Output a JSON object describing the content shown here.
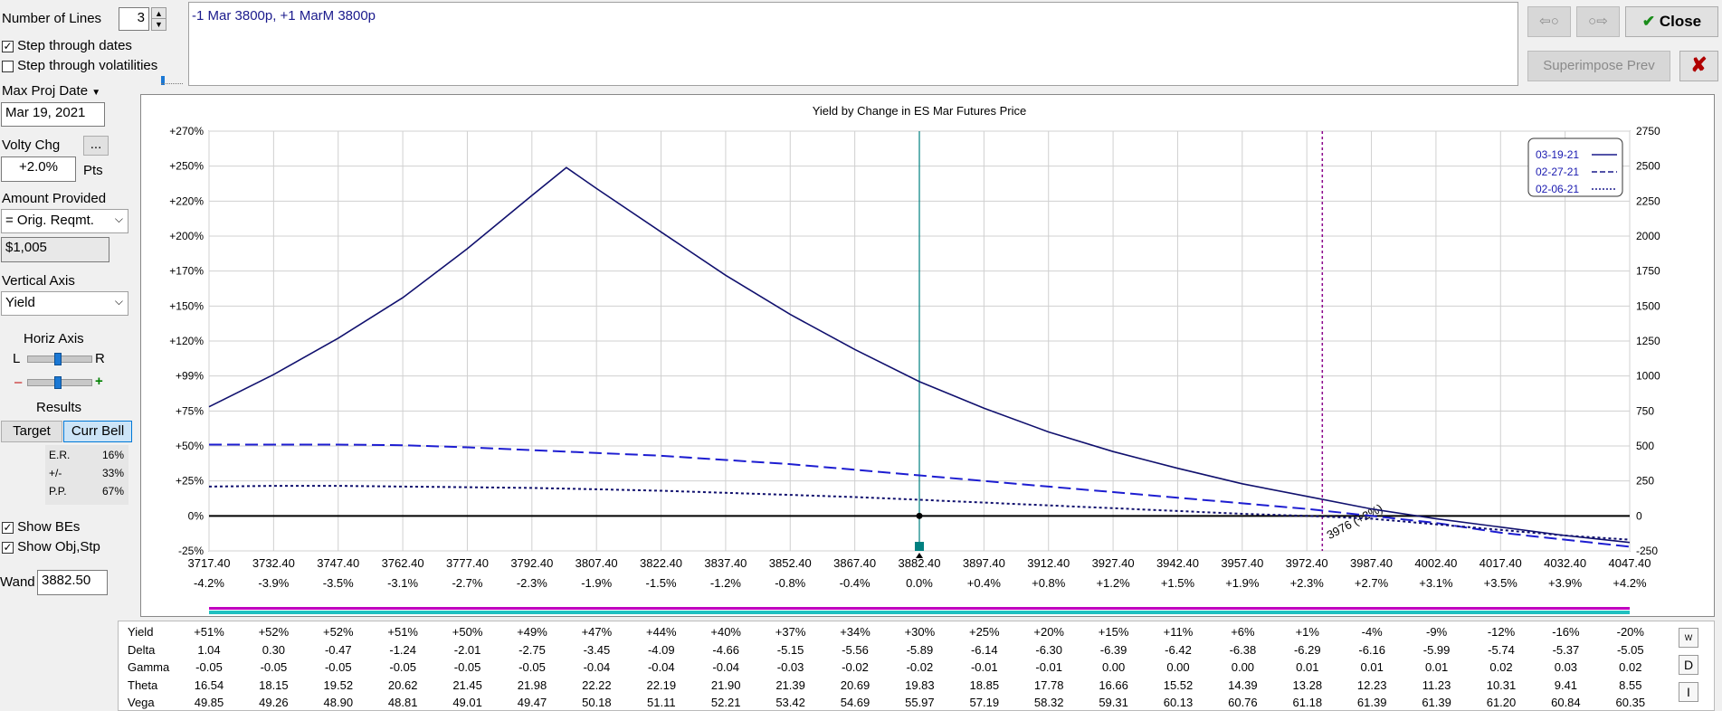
{
  "left_panel": {
    "number_of_lines_label": "Number of Lines",
    "number_of_lines_value": "3",
    "step_dates_label": "Step through dates",
    "step_dates_checked": true,
    "step_vol_label": "Step through volatilities",
    "step_vol_checked": false,
    "max_proj_date_label": "Max Proj Date",
    "max_proj_date_value": "Mar 19, 2021",
    "volty_chg_label": "Volty Chg",
    "volty_chg_button": "...",
    "volty_chg_value": "+2.0%",
    "volty_chg_unit": "Pts",
    "amount_provided_label": "Amount Provided",
    "amount_provided_select": "= Orig. Reqmt.",
    "amount_value": "$1,005",
    "vertical_axis_label": "Vertical Axis",
    "vertical_axis_select": "Yield",
    "horiz_axis_label": "Horiz Axis",
    "horiz_l": "L",
    "horiz_r": "R",
    "horiz_minus": "–",
    "horiz_plus": "+",
    "results_label": "Results",
    "tab_target": "Target",
    "tab_curr_bell": "Curr Bell",
    "er_label": "E.R.",
    "er_value": "16%",
    "pm_label": "+/-",
    "pm_value": "33%",
    "pp_label": "P.P.",
    "pp_value": "67%",
    "show_bes_label": "Show BEs",
    "show_bes_checked": true,
    "show_objstp_label": "Show Obj,Stp",
    "show_objstp_checked": true,
    "wand_label": "Wand",
    "wand_value": "3882.50"
  },
  "top": {
    "position_text": "-1 Mar 3800p, +1 MarM 3800p",
    "close_label": "Close",
    "superimpose_label": "Superimpose Prev"
  },
  "chart_data": {
    "type": "line",
    "title": "Yield by Change in ES Mar Futures Price",
    "x_ticks": [
      "3717.40",
      "3732.40",
      "3747.40",
      "3762.40",
      "3777.40",
      "3792.40",
      "3807.40",
      "3822.40",
      "3837.40",
      "3852.40",
      "3867.40",
      "3882.40",
      "3897.40",
      "3912.40",
      "3927.40",
      "3942.40",
      "3957.40",
      "3972.40",
      "3987.40",
      "4002.40",
      "4017.40",
      "4032.40",
      "4047.40"
    ],
    "x_pct_ticks": [
      "-4.2%",
      "-3.9%",
      "-3.5%",
      "-3.1%",
      "-2.7%",
      "-2.3%",
      "-1.9%",
      "-1.5%",
      "-1.2%",
      "-0.8%",
      "-0.4%",
      "0.0%",
      "+0.4%",
      "+0.8%",
      "+1.2%",
      "+1.5%",
      "+1.9%",
      "+2.3%",
      "+2.7%",
      "+3.1%",
      "+3.5%",
      "+3.9%",
      "+4.2%"
    ],
    "y_left_ticks": [
      "+270%",
      "+250%",
      "+220%",
      "+200%",
      "+170%",
      "+150%",
      "+120%",
      "+99%",
      "+75%",
      "+50%",
      "+25%",
      "0%",
      "-25%"
    ],
    "y_right_ticks": [
      "2750",
      "2500",
      "2250",
      "2000",
      "1750",
      "1500",
      "1250",
      "1000",
      "750",
      "500",
      "250",
      "0",
      "-250"
    ],
    "xlim": [
      3717.4,
      4047.4
    ],
    "ylim": [
      -250,
      2750
    ],
    "current_price": 3882.4,
    "objective_line": 3976,
    "objective_label": "3976 (+2%)",
    "series": [
      {
        "name": "03-19-21",
        "style": "solid",
        "x": [
          3717.4,
          3732.4,
          3747.4,
          3762.4,
          3777.4,
          3792.4,
          3800.4,
          3807.4,
          3822.4,
          3837.4,
          3852.4,
          3867.4,
          3882.4,
          3897.4,
          3912.4,
          3927.4,
          3942.4,
          3957.4,
          3972.4,
          3987.4,
          4002.4,
          4017.4,
          4032.4,
          4047.4
        ],
        "y": [
          780,
          1010,
          1270,
          1560,
          1910,
          2290,
          2490,
          2340,
          2030,
          1720,
          1440,
          1190,
          960,
          770,
          600,
          460,
          340,
          230,
          140,
          50,
          -20,
          -80,
          -140,
          -190
        ]
      },
      {
        "name": "02-27-21",
        "style": "dash",
        "x": [
          3717.4,
          3732.4,
          3747.4,
          3762.4,
          3777.4,
          3792.4,
          3807.4,
          3822.4,
          3837.4,
          3852.4,
          3867.4,
          3882.4,
          3897.4,
          3912.4,
          3927.4,
          3942.4,
          3957.4,
          3972.4,
          3987.4,
          4002.4,
          4017.4,
          4032.4,
          4047.4
        ],
        "y": [
          510,
          510,
          510,
          505,
          490,
          470,
          450,
          430,
          400,
          370,
          330,
          290,
          250,
          210,
          170,
          130,
          90,
          50,
          0,
          -50,
          -120,
          -170,
          -220
        ]
      },
      {
        "name": "02-06-21",
        "style": "dot",
        "x": [
          3717.4,
          3732.4,
          3747.4,
          3762.4,
          3777.4,
          3792.4,
          3807.4,
          3822.4,
          3837.4,
          3852.4,
          3867.4,
          3882.4,
          3897.4,
          3912.4,
          3927.4,
          3942.4,
          3957.4,
          3972.4,
          3987.4,
          4002.4,
          4017.4,
          4032.4,
          4047.4
        ],
        "y": [
          210,
          215,
          215,
          210,
          205,
          200,
          190,
          180,
          165,
          150,
          135,
          115,
          95,
          75,
          55,
          35,
          15,
          0,
          -20,
          -60,
          -100,
          -140,
          -170
        ]
      }
    ],
    "legend_position": "top-right",
    "grid": true
  },
  "stats": {
    "rows": [
      {
        "label": "Yield",
        "values": [
          "+51%",
          "+52%",
          "+52%",
          "+51%",
          "+50%",
          "+49%",
          "+47%",
          "+44%",
          "+40%",
          "+37%",
          "+34%",
          "+30%",
          "+25%",
          "+20%",
          "+15%",
          "+11%",
          "+6%",
          "+1%",
          "-4%",
          "-9%",
          "-12%",
          "-16%",
          "-20%"
        ]
      },
      {
        "label": "Delta",
        "values": [
          "1.04",
          "0.30",
          "-0.47",
          "-1.24",
          "-2.01",
          "-2.75",
          "-3.45",
          "-4.09",
          "-4.66",
          "-5.15",
          "-5.56",
          "-5.89",
          "-6.14",
          "-6.30",
          "-6.39",
          "-6.42",
          "-6.38",
          "-6.29",
          "-6.16",
          "-5.99",
          "-5.74",
          "-5.37",
          "-5.05"
        ]
      },
      {
        "label": "Gamma",
        "values": [
          "-0.05",
          "-0.05",
          "-0.05",
          "-0.05",
          "-0.05",
          "-0.05",
          "-0.04",
          "-0.04",
          "-0.04",
          "-0.03",
          "-0.02",
          "-0.02",
          "-0.01",
          "-0.01",
          "0.00",
          "0.00",
          "0.00",
          "0.01",
          "0.01",
          "0.01",
          "0.02",
          "0.03",
          "0.02"
        ]
      },
      {
        "label": "Theta",
        "values": [
          "16.54",
          "18.15",
          "19.52",
          "20.62",
          "21.45",
          "21.98",
          "22.22",
          "22.19",
          "21.90",
          "21.39",
          "20.69",
          "19.83",
          "18.85",
          "17.78",
          "16.66",
          "15.52",
          "14.39",
          "13.28",
          "12.23",
          "11.23",
          "10.31",
          "9.41",
          "8.55"
        ]
      },
      {
        "label": "Vega",
        "values": [
          "49.85",
          "49.26",
          "48.90",
          "48.81",
          "49.01",
          "49.47",
          "50.18",
          "51.11",
          "52.21",
          "53.42",
          "54.69",
          "55.97",
          "57.19",
          "58.32",
          "59.31",
          "60.13",
          "60.76",
          "61.18",
          "61.39",
          "61.39",
          "61.20",
          "60.84",
          "60.35"
        ]
      }
    ],
    "side_buttons": [
      "W",
      "D",
      "I"
    ]
  }
}
